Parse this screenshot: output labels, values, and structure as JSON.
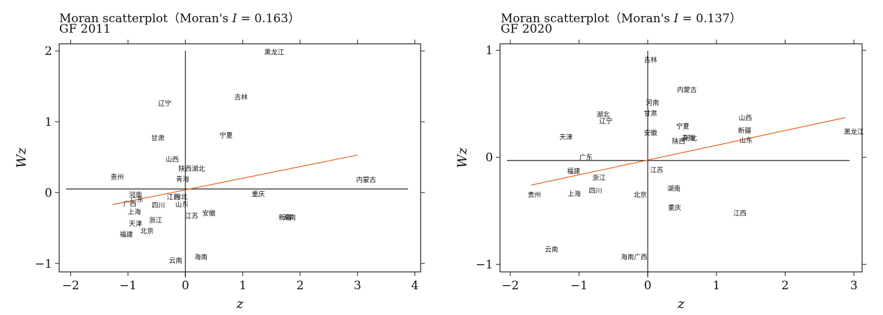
{
  "colors": {
    "fit_line": "#e8601c",
    "axis": "#222222",
    "background": "#ffffff"
  },
  "chart_data": [
    {
      "type": "scatter",
      "title": "Moran scatterplot（Moran's I = 0.163）",
      "title_parts": {
        "prefix": "Moran scatterplot（Moran's ",
        "stat": "I",
        "suffix": " = 0.163）"
      },
      "subtitle": "GF 2011",
      "xlabel": "z",
      "ylabel": "Wz",
      "xlim": [
        -2.2,
        4.1
      ],
      "ylim": [
        -1.12,
        2.1
      ],
      "xticks": [
        -2,
        -1,
        0,
        1,
        2,
        3,
        4
      ],
      "yticks": [
        -1,
        0,
        1,
        2
      ],
      "xtick_labels": [
        "−2",
        "−1",
        "0",
        "1",
        "2",
        "3",
        "4"
      ],
      "ytick_labels": [
        "−1",
        "0",
        "1",
        "2"
      ],
      "ref_x": 0,
      "ref_y": 0.05,
      "fit_line": {
        "x1": -1.27,
        "y1": -0.17,
        "x2": 3.0,
        "y2": 0.53
      },
      "points": [
        {
          "label": "黑龙江",
          "x": 1.55,
          "y": 1.98
        },
        {
          "label": "吉林",
          "x": 0.97,
          "y": 1.35
        },
        {
          "label": "辽宁",
          "x": -0.36,
          "y": 1.26
        },
        {
          "label": "宁夏",
          "x": 0.71,
          "y": 0.81
        },
        {
          "label": "甘肃",
          "x": -0.48,
          "y": 0.77
        },
        {
          "label": "山西",
          "x": -0.23,
          "y": 0.47
        },
        {
          "label": "陕西湖北",
          "x": 0.11,
          "y": 0.34
        },
        {
          "label": "贵州",
          "x": -1.19,
          "y": 0.22
        },
        {
          "label": "青海",
          "x": -0.05,
          "y": 0.19
        },
        {
          "label": "内蒙古",
          "x": 3.15,
          "y": 0.18
        },
        {
          "label": "河南",
          "x": -0.87,
          "y": -0.03
        },
        {
          "label": "重庆",
          "x": 1.27,
          "y": -0.02
        },
        {
          "label": "江西",
          "x": -0.21,
          "y": -0.06
        },
        {
          "label": "河北",
          "x": -0.08,
          "y": -0.06
        },
        {
          "label": "广东",
          "x": -0.85,
          "y": -0.1
        },
        {
          "label": "广西",
          "x": -0.97,
          "y": -0.16
        },
        {
          "label": "四川",
          "x": -0.47,
          "y": -0.18
        },
        {
          "label": "山东",
          "x": -0.06,
          "y": -0.17
        },
        {
          "label": "上海",
          "x": -0.89,
          "y": -0.27
        },
        {
          "label": "安徽",
          "x": 0.41,
          "y": -0.29
        },
        {
          "label": "江苏",
          "x": 0.11,
          "y": -0.33
        },
        {
          "label": "新疆",
          "x": 1.74,
          "y": -0.35
        },
        {
          "label": "湖南",
          "x": 1.81,
          "y": -0.35
        },
        {
          "label": "浙江",
          "x": -0.52,
          "y": -0.39
        },
        {
          "label": "天津",
          "x": -0.87,
          "y": -0.44
        },
        {
          "label": "北京",
          "x": -0.67,
          "y": -0.54
        },
        {
          "label": "福建",
          "x": -1.03,
          "y": -0.59
        },
        {
          "label": "海南",
          "x": 0.27,
          "y": -0.91
        },
        {
          "label": "云南",
          "x": -0.17,
          "y": -0.96
        }
      ]
    },
    {
      "type": "scatter",
      "title": "Moran scatterplot（Moran's I = 0.137）",
      "title_parts": {
        "prefix": "Moran scatterplot（Moran's ",
        "stat": "I",
        "suffix": " = 0.137）"
      },
      "subtitle": "GF 2020",
      "xlabel": "z",
      "ylabel": "Wz",
      "xlim": [
        -2.15,
        3.12
      ],
      "ylim": [
        -1.07,
        1.06
      ],
      "xticks": [
        -2,
        -1,
        0,
        1,
        2,
        3
      ],
      "yticks": [
        -1,
        0,
        1
      ],
      "xtick_labels": [
        "−2",
        "−1",
        "0",
        "1",
        "2",
        "3"
      ],
      "ytick_labels": [
        "−1",
        "0",
        "1"
      ],
      "ref_x": 0,
      "ref_y": -0.03,
      "fit_line": {
        "x1": -1.7,
        "y1": -0.26,
        "x2": 2.87,
        "y2": 0.37
      },
      "points": [
        {
          "label": "吉林",
          "x": 0.04,
          "y": 0.91
        },
        {
          "label": "内蒙古",
          "x": 0.57,
          "y": 0.63
        },
        {
          "label": "河南",
          "x": 0.07,
          "y": 0.51
        },
        {
          "label": "湖北",
          "x": -0.65,
          "y": 0.4
        },
        {
          "label": "甘肃",
          "x": 0.04,
          "y": 0.41
        },
        {
          "label": "辽宁",
          "x": -0.61,
          "y": 0.34
        },
        {
          "label": "山西",
          "x": 1.42,
          "y": 0.37
        },
        {
          "label": "宁夏",
          "x": 0.51,
          "y": 0.29
        },
        {
          "label": "新疆",
          "x": 1.41,
          "y": 0.25
        },
        {
          "label": "黑龙江",
          "x": 3.0,
          "y": 0.24
        },
        {
          "label": "安徽",
          "x": 0.04,
          "y": 0.23
        },
        {
          "label": "天津",
          "x": -1.19,
          "y": 0.19
        },
        {
          "label": "青海",
          "x": 0.59,
          "y": 0.18
        },
        {
          "label": "河北",
          "x": 0.62,
          "y": 0.18
        },
        {
          "label": "山东",
          "x": 1.43,
          "y": 0.16
        },
        {
          "label": "陕西",
          "x": 0.45,
          "y": 0.15
        },
        {
          "label": "广东",
          "x": -0.9,
          "y": 0.0
        },
        {
          "label": "江苏",
          "x": 0.13,
          "y": -0.12
        },
        {
          "label": "福建",
          "x": -1.08,
          "y": -0.13
        },
        {
          "label": "浙江",
          "x": -0.71,
          "y": -0.19
        },
        {
          "label": "湖南",
          "x": 0.38,
          "y": -0.29
        },
        {
          "label": "四川",
          "x": -0.76,
          "y": -0.31
        },
        {
          "label": "上海",
          "x": -1.07,
          "y": -0.34
        },
        {
          "label": "贵州",
          "x": -1.65,
          "y": -0.35
        },
        {
          "label": "北京",
          "x": -0.11,
          "y": -0.35
        },
        {
          "label": "重庆",
          "x": 0.39,
          "y": -0.47
        },
        {
          "label": "江西",
          "x": 1.34,
          "y": -0.52
        },
        {
          "label": "云南",
          "x": -1.4,
          "y": -0.86
        },
        {
          "label": "海南广西",
          "x": -0.2,
          "y": -0.93
        }
      ]
    }
  ]
}
